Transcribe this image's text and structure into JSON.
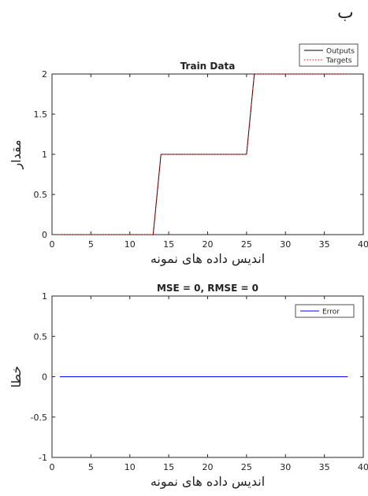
{
  "figure_label": "ب",
  "chart_data": [
    {
      "type": "line",
      "title": "Train Data",
      "xlabel": "اندیس داده های نمونه",
      "ylabel": "مقدار",
      "xlim": [
        0,
        40
      ],
      "ylim": [
        0,
        2
      ],
      "x_ticks": [
        "0",
        "5",
        "10",
        "15",
        "20",
        "25",
        "30",
        "35",
        "40"
      ],
      "y_ticks": [
        "0",
        "0.5",
        "1",
        "1.5",
        "2"
      ],
      "grid": false,
      "legend_position": "top-right",
      "series": [
        {
          "name": "Outputs",
          "color": "#000000",
          "style": "solid",
          "x": [
            1,
            2,
            3,
            4,
            5,
            6,
            7,
            8,
            9,
            10,
            11,
            12,
            13,
            14,
            15,
            16,
            17,
            18,
            19,
            20,
            21,
            22,
            23,
            24,
            25,
            26,
            27,
            28,
            29,
            30,
            31,
            32,
            33,
            34,
            35,
            36,
            37,
            38
          ],
          "values": [
            0,
            0,
            0,
            0,
            0,
            0,
            0,
            0,
            0,
            0,
            0,
            0,
            0,
            1,
            1,
            1,
            1,
            1,
            1,
            1,
            1,
            1,
            1,
            1,
            1,
            2,
            2,
            2,
            2,
            2,
            2,
            2,
            2,
            2,
            2,
            2,
            2,
            2
          ]
        },
        {
          "name": "Targets",
          "color": "#ff0000",
          "style": "dotted",
          "x": [
            1,
            2,
            3,
            4,
            5,
            6,
            7,
            8,
            9,
            10,
            11,
            12,
            13,
            14,
            15,
            16,
            17,
            18,
            19,
            20,
            21,
            22,
            23,
            24,
            25,
            26,
            27,
            28,
            29,
            30,
            31,
            32,
            33,
            34,
            35,
            36,
            37,
            38
          ],
          "values": [
            0,
            0,
            0,
            0,
            0,
            0,
            0,
            0,
            0,
            0,
            0,
            0,
            0,
            1,
            1,
            1,
            1,
            1,
            1,
            1,
            1,
            1,
            1,
            1,
            1,
            2,
            2,
            2,
            2,
            2,
            2,
            2,
            2,
            2,
            2,
            2,
            2,
            2
          ]
        }
      ]
    },
    {
      "type": "line",
      "title": "MSE = 0, RMSE = 0",
      "xlabel": "اندیس داده های نمونه",
      "ylabel": "خطا",
      "xlim": [
        0,
        40
      ],
      "ylim": [
        -1,
        1
      ],
      "x_ticks": [
        "0",
        "5",
        "10",
        "15",
        "20",
        "25",
        "30",
        "35",
        "40"
      ],
      "y_ticks": [
        "-1",
        "-0.5",
        "0",
        "0.5",
        "1"
      ],
      "grid": false,
      "legend_position": "top-right",
      "series": [
        {
          "name": "Error",
          "color": "#0000ff",
          "style": "solid",
          "x": [
            1,
            38
          ],
          "values": [
            0,
            0
          ]
        }
      ]
    }
  ]
}
